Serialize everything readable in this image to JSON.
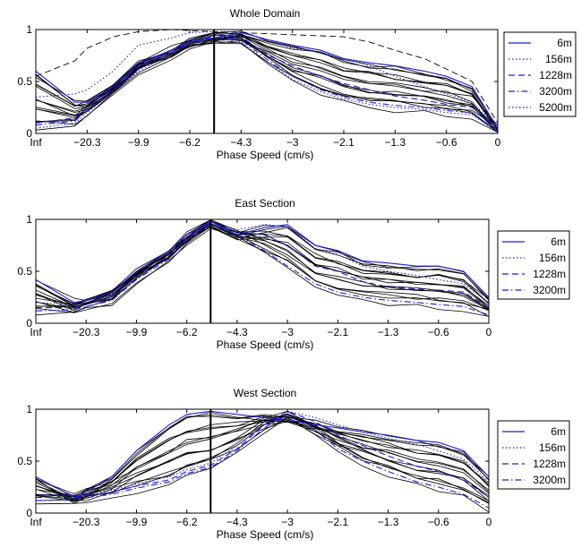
{
  "figure": {
    "panels": [
      {
        "title": "Whole Domain",
        "xlabel": "Phase Speed (cm/s)",
        "x_tick_labels": [
          "Inf",
          "−20.3",
          "−9.9",
          "−6.2",
          "−4.3",
          "−3",
          "−2.1",
          "−1.3",
          "−0.6",
          "0"
        ],
        "y_tick_labels": [
          "0",
          "0.5",
          "1"
        ],
        "legend": [
          "6m",
          "156m",
          "1228m",
          "3200m",
          "5200m"
        ]
      },
      {
        "title": "East Section",
        "xlabel": "Phase Speed (cm/s)",
        "x_tick_labels": [
          "Inf",
          "−20.3",
          "−9.9",
          "−6.2",
          "−4.3",
          "−3",
          "−2.1",
          "−1.3",
          "−0.6",
          "0"
        ],
        "y_tick_labels": [
          "0",
          "0.5",
          "1"
        ],
        "legend": [
          "6m",
          "156m",
          "1228m",
          "3200m"
        ]
      },
      {
        "title": "West Section",
        "xlabel": "Phase Speed (cm/s)",
        "x_tick_labels": [
          "Inf",
          "−20.3",
          "−9.9",
          "−6.2",
          "−4.3",
          "−3",
          "−2.1",
          "−1.3",
          "−0.6",
          "0"
        ],
        "y_tick_labels": [
          "0",
          "0.5",
          "1"
        ],
        "legend": [
          "6m",
          "156m",
          "1228m",
          "3200m"
        ]
      }
    ]
  },
  "chart_data": [
    {
      "type": "line",
      "title": "Whole Domain",
      "xlabel": "Phase Speed (cm/s)",
      "ylabel": "",
      "categories": [
        "Inf",
        "−20.3",
        "−9.9",
        "−6.2",
        "−4.3",
        "−3",
        "−2.1",
        "−1.3",
        "−0.6",
        "0"
      ],
      "ylim": [
        0,
        1
      ],
      "vertical_line_at": -5.3,
      "grid": false,
      "legend_position": "right",
      "colors": {
        "blue": "#1f1fd8",
        "black": "#000000"
      },
      "series": [
        {
          "name": "6m",
          "style": "solid",
          "color": "#1f1fd8",
          "x": [
            "Inf",
            -25,
            -20.3,
            -15,
            -9.9,
            -7.5,
            -6.2,
            -5.3,
            -4.3,
            -3.6,
            -3,
            -2.5,
            -2.1,
            -1.7,
            -1.3,
            -0.9,
            -0.6,
            -0.3,
            0
          ],
          "y": [
            0.6,
            0.3,
            0.3,
            0.45,
            0.68,
            0.8,
            0.88,
            0.92,
            0.97,
            0.9,
            0.85,
            0.8,
            0.72,
            0.68,
            0.65,
            0.6,
            0.55,
            0.45,
            0.05
          ]
        },
        {
          "name": "156m",
          "style": "dotted",
          "color": "#1f1fd8",
          "x": [
            "Inf",
            -25,
            -20.3,
            -15,
            -9.9,
            -7.5,
            -6.2,
            -5.3,
            -4.3,
            -3.6,
            -3,
            -2.5,
            -2.1,
            -1.7,
            -1.3,
            -0.9,
            -0.6,
            -0.3,
            0
          ],
          "y": [
            0.35,
            0.38,
            0.42,
            0.6,
            0.85,
            0.92,
            0.97,
            0.98,
            0.98,
            0.9,
            0.82,
            0.78,
            0.72,
            0.65,
            0.55,
            0.45,
            0.38,
            0.3,
            0.05
          ]
        },
        {
          "name": "1228m",
          "style": "dashed",
          "color": "#1f1fd8",
          "x": [
            "Inf",
            -25,
            -20.3,
            -15,
            -9.9,
            -7.5,
            -6.2,
            -5.3,
            -4.3,
            -3.6,
            -3,
            -2.5,
            -2.1,
            -1.7,
            -1.3,
            -0.9,
            -0.6,
            -0.3,
            0
          ],
          "y": [
            0.1,
            0.15,
            0.25,
            0.45,
            0.65,
            0.8,
            0.9,
            0.95,
            0.93,
            0.75,
            0.65,
            0.55,
            0.48,
            0.42,
            0.36,
            0.32,
            0.28,
            0.25,
            0.05
          ]
        },
        {
          "name": "3200m",
          "style": "dashdot",
          "color": "#1f1fd8",
          "x": [
            "Inf",
            -25,
            -20.3,
            -15,
            -9.9,
            -7.5,
            -6.2,
            -5.3,
            -4.3,
            -3.6,
            -3,
            -2.5,
            -2.1,
            -1.7,
            -1.3,
            -0.9,
            -0.6,
            -0.3,
            0
          ],
          "y": [
            0.08,
            0.12,
            0.22,
            0.42,
            0.62,
            0.78,
            0.88,
            0.93,
            0.9,
            0.7,
            0.55,
            0.42,
            0.35,
            0.3,
            0.27,
            0.25,
            0.22,
            0.2,
            0.02
          ]
        },
        {
          "name": "5200m",
          "style": "dotted",
          "color": "#1f1fd8",
          "x": [
            "Inf",
            -25,
            -20.3,
            -15,
            -9.9,
            -7.5,
            -6.2,
            -5.3,
            -4.3,
            -3.6,
            -3,
            -2.5,
            -2.1,
            -1.7,
            -1.3,
            -0.9,
            -0.6,
            -0.3,
            0
          ],
          "y": [
            0.05,
            0.1,
            0.2,
            0.4,
            0.6,
            0.76,
            0.86,
            0.92,
            0.88,
            0.68,
            0.52,
            0.4,
            0.33,
            0.28,
            0.25,
            0.23,
            0.2,
            0.18,
            0.01
          ]
        }
      ]
    },
    {
      "type": "line",
      "title": "East Section",
      "xlabel": "Phase Speed (cm/s)",
      "ylabel": "",
      "categories": [
        "Inf",
        "−20.3",
        "−9.9",
        "−6.2",
        "−4.3",
        "−3",
        "−2.1",
        "−1.3",
        "−0.6",
        "0"
      ],
      "ylim": [
        0,
        1
      ],
      "vertical_line_at": -5.3,
      "grid": false,
      "legend_position": "right",
      "series": [
        {
          "name": "6m",
          "style": "solid",
          "color": "#1f1fd8",
          "x": [
            "Inf",
            -25,
            -20.3,
            -15,
            -9.9,
            -7.5,
            -6.2,
            -5.3,
            -4.3,
            -3.6,
            -3,
            -2.5,
            -2.1,
            -1.7,
            -1.3,
            -0.9,
            -0.6,
            -0.3,
            0
          ],
          "y": [
            0.42,
            0.2,
            0.22,
            0.3,
            0.5,
            0.7,
            0.85,
            0.98,
            0.85,
            0.92,
            0.95,
            0.75,
            0.7,
            0.6,
            0.58,
            0.55,
            0.55,
            0.5,
            0.25
          ]
        },
        {
          "name": "156m",
          "style": "dotted",
          "color": "#1f1fd8",
          "x": [
            "Inf",
            -25,
            -20.3,
            -15,
            -9.9,
            -7.5,
            -6.2,
            -5.3,
            -4.3,
            -3.6,
            -3,
            -2.5,
            -2.1,
            -1.7,
            -1.3,
            -0.9,
            -0.6,
            -0.3,
            0
          ],
          "y": [
            0.2,
            0.18,
            0.2,
            0.28,
            0.5,
            0.7,
            0.86,
            0.98,
            0.9,
            0.95,
            0.93,
            0.72,
            0.66,
            0.55,
            0.5,
            0.46,
            0.42,
            0.38,
            0.2
          ]
        },
        {
          "name": "1228m",
          "style": "dashed",
          "color": "#1f1fd8",
          "x": [
            "Inf",
            -25,
            -20.3,
            -15,
            -9.9,
            -7.5,
            -6.2,
            -5.3,
            -4.3,
            -3.6,
            -3,
            -2.5,
            -2.1,
            -1.7,
            -1.3,
            -0.9,
            -0.6,
            -0.3,
            0
          ],
          "y": [
            0.15,
            0.15,
            0.18,
            0.25,
            0.45,
            0.65,
            0.82,
            0.97,
            0.88,
            0.85,
            0.75,
            0.55,
            0.5,
            0.4,
            0.35,
            0.33,
            0.32,
            0.3,
            0.15
          ]
        },
        {
          "name": "3200m",
          "style": "dashdot",
          "color": "#1f1fd8",
          "x": [
            "Inf",
            -25,
            -20.3,
            -15,
            -9.9,
            -7.5,
            -6.2,
            -5.3,
            -4.3,
            -3.6,
            -3,
            -2.5,
            -2.1,
            -1.7,
            -1.3,
            -0.9,
            -0.6,
            -0.3,
            0
          ],
          "y": [
            0.12,
            0.13,
            0.16,
            0.22,
            0.42,
            0.62,
            0.8,
            0.96,
            0.85,
            0.7,
            0.55,
            0.38,
            0.3,
            0.25,
            0.22,
            0.2,
            0.18,
            0.16,
            0.08
          ]
        }
      ]
    },
    {
      "type": "line",
      "title": "West Section",
      "xlabel": "Phase Speed (cm/s)",
      "ylabel": "",
      "categories": [
        "Inf",
        "−20.3",
        "−9.9",
        "−6.2",
        "−4.3",
        "−3",
        "−2.1",
        "−1.3",
        "−0.6",
        "0"
      ],
      "ylim": [
        0,
        1
      ],
      "vertical_line_at": -5.3,
      "grid": false,
      "legend_position": "right",
      "series": [
        {
          "name": "6m",
          "style": "solid",
          "color": "#1f1fd8",
          "x": [
            "Inf",
            -25,
            -20.3,
            -15,
            -9.9,
            -7.5,
            -6.2,
            -5.3,
            -4.3,
            -3.6,
            -3,
            -2.5,
            -2.1,
            -1.7,
            -1.3,
            -0.9,
            -0.6,
            -0.3,
            0
          ],
          "y": [
            0.35,
            0.15,
            0.2,
            0.35,
            0.6,
            0.85,
            0.95,
            0.98,
            0.95,
            0.92,
            0.9,
            0.85,
            0.82,
            0.78,
            0.75,
            0.7,
            0.68,
            0.6,
            0.35
          ]
        },
        {
          "name": "156m",
          "style": "dotted",
          "color": "#1f1fd8",
          "x": [
            "Inf",
            -25,
            -20.3,
            -15,
            -9.9,
            -7.5,
            -6.2,
            -5.3,
            -4.3,
            -3.6,
            -3,
            -2.5,
            -2.1,
            -1.7,
            -1.3,
            -0.9,
            -0.6,
            -0.3,
            0
          ],
          "y": [
            0.18,
            0.17,
            0.18,
            0.22,
            0.28,
            0.35,
            0.42,
            0.48,
            0.65,
            0.85,
            0.98,
            0.92,
            0.85,
            0.78,
            0.72,
            0.66,
            0.6,
            0.52,
            0.3
          ]
        },
        {
          "name": "1228m",
          "style": "dashed",
          "color": "#1f1fd8",
          "x": [
            "Inf",
            -25,
            -20.3,
            -15,
            -9.9,
            -7.5,
            -6.2,
            -5.3,
            -4.3,
            -3.6,
            -3,
            -2.5,
            -2.1,
            -1.7,
            -1.3,
            -0.9,
            -0.6,
            -0.3,
            0
          ],
          "y": [
            0.15,
            0.15,
            0.17,
            0.2,
            0.26,
            0.32,
            0.4,
            0.46,
            0.62,
            0.85,
            0.98,
            0.88,
            0.75,
            0.65,
            0.55,
            0.45,
            0.4,
            0.32,
            0.15
          ]
        },
        {
          "name": "3200m",
          "style": "dashdot",
          "color": "#1f1fd8",
          "x": [
            "Inf",
            -25,
            -20.3,
            -15,
            -9.9,
            -7.5,
            -6.2,
            -5.3,
            -4.3,
            -3.6,
            -3,
            -2.5,
            -2.1,
            -1.7,
            -1.3,
            -0.9,
            -0.6,
            -0.3,
            0
          ],
          "y": [
            0.12,
            0.13,
            0.15,
            0.18,
            0.24,
            0.3,
            0.38,
            0.44,
            0.6,
            0.82,
            0.95,
            0.8,
            0.62,
            0.5,
            0.4,
            0.3,
            0.25,
            0.18,
            0.05
          ]
        }
      ]
    }
  ]
}
